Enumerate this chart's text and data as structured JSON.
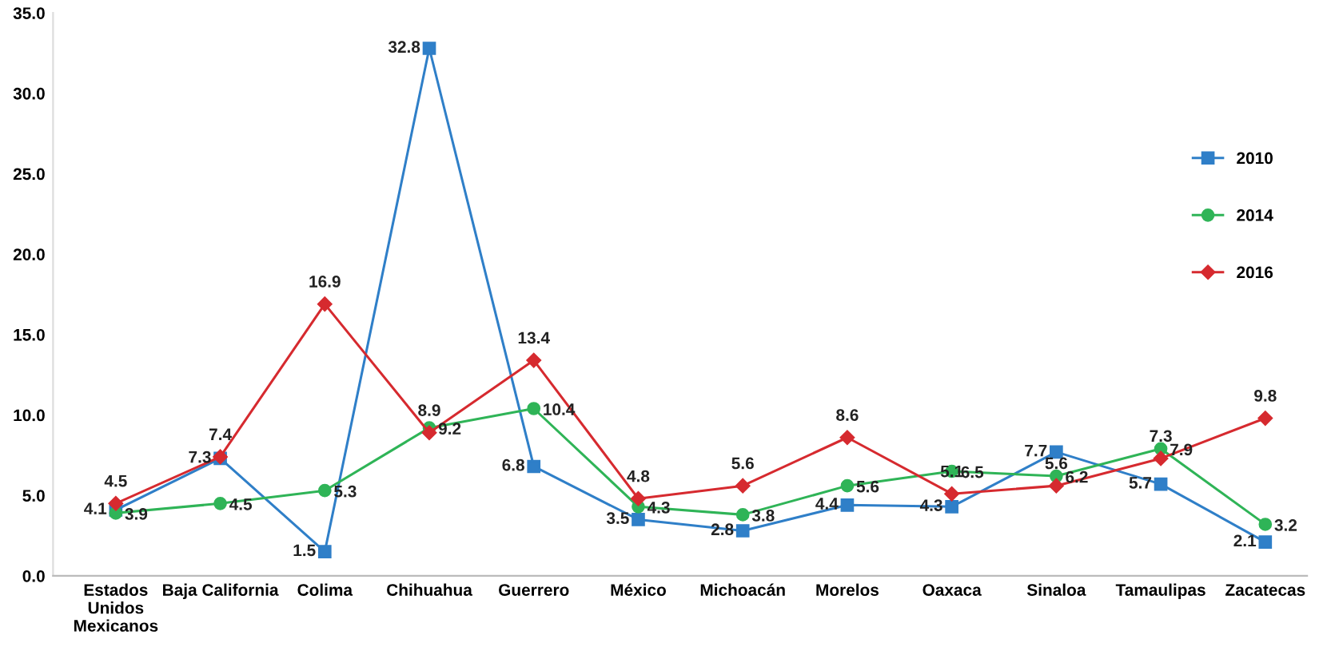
{
  "chart_data": {
    "type": "line",
    "categories": [
      "Estados\nUnidos\nMexicanos",
      "Baja California",
      "Colima",
      "Chihuahua",
      "Guerrero",
      "México",
      "Michoacán",
      "Morelos",
      "Oaxaca",
      "Sinaloa",
      "Tamaulipas",
      "Zacatecas"
    ],
    "series": [
      {
        "name": "2010",
        "color": "#2f7fc8",
        "marker": "square",
        "values": [
          4.1,
          7.3,
          1.5,
          32.8,
          6.8,
          3.5,
          2.8,
          4.4,
          4.3,
          7.7,
          5.7,
          2.1
        ]
      },
      {
        "name": "2014",
        "color": "#2fb457",
        "marker": "circle",
        "values": [
          3.9,
          4.5,
          5.3,
          9.2,
          10.4,
          4.3,
          3.8,
          5.6,
          6.5,
          6.2,
          7.9,
          3.2
        ]
      },
      {
        "name": "2016",
        "color": "#d62a2f",
        "marker": "diamond",
        "values": [
          4.5,
          7.4,
          16.9,
          8.9,
          13.4,
          4.8,
          5.6,
          8.6,
          5.1,
          5.6,
          7.3,
          9.8
        ]
      }
    ],
    "ylim": [
      0,
      35
    ],
    "yticks": [
      {
        "value": 0,
        "label": "0.0"
      },
      {
        "value": 5,
        "label": "5.0"
      },
      {
        "value": 10,
        "label": "10.0"
      },
      {
        "value": 15,
        "label": "15.0"
      },
      {
        "value": 20,
        "label": "20.0"
      },
      {
        "value": 25,
        "label": "25.0"
      },
      {
        "value": 30,
        "label": "30.0"
      },
      {
        "value": 35,
        "label": "35.0"
      }
    ],
    "data_labels": true,
    "legend": "right",
    "grid": false,
    "line_style": "solid"
  }
}
